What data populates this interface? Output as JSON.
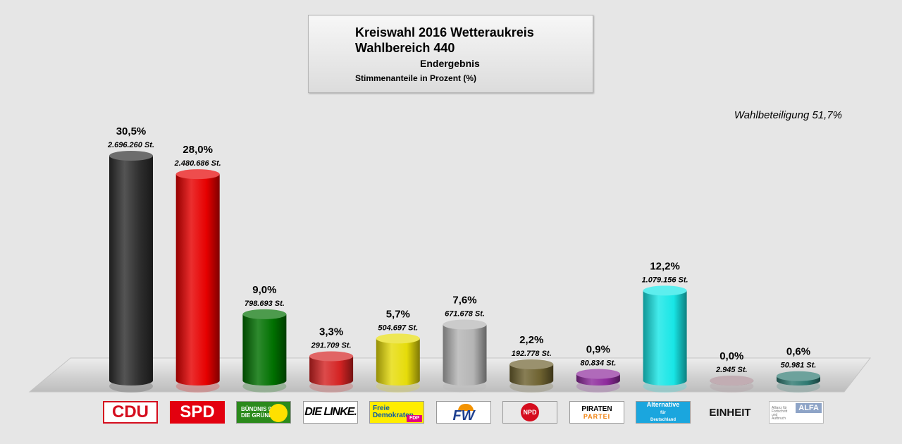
{
  "title": {
    "line1": "Kreiswahl 2016 Wetteraukreis",
    "line2": "Wahlbereich 440",
    "line3": "Endergebnis",
    "line4": "Stimmenanteile in Prozent (%)"
  },
  "turnout_label": "Wahlbeteiligung 51,7%",
  "colors": {
    "background": "#e6e6e6",
    "floor": "#c8c8c8"
  },
  "chart_data": {
    "type": "bar",
    "title": "Kreiswahl 2016 Wetteraukreis",
    "ylabel": "",
    "xlabel": "",
    "ylim": [
      0,
      30.5
    ],
    "grid": false,
    "legend": "none",
    "categories": [
      "CDU",
      "SPD",
      "BÜNDNIS 90 DIE GRÜNEN",
      "DIE LINKE.",
      "Freie Demokraten FDP",
      "FW",
      "NPD",
      "PIRATEN PARTEI",
      "Alternative für Deutschland",
      "EINHEIT",
      "ALFA"
    ],
    "values": [
      30.5,
      28.0,
      9.0,
      3.3,
      5.7,
      7.6,
      2.2,
      0.9,
      12.2,
      0.0,
      0.6
    ],
    "percent_labels": [
      "30,5%",
      "28,0%",
      "9,0%",
      "3,3%",
      "5,7%",
      "7,6%",
      "2,2%",
      "0,9%",
      "12,2%",
      "0,0%",
      "0,6%"
    ],
    "vote_labels": [
      "2.696.260 St.",
      "2.480.686 St.",
      "798.693 St.",
      "291.709 St.",
      "504.697 St.",
      "671.678 St.",
      "192.778 St.",
      "80.834 St.",
      "1.079.156 St.",
      "2.945 St.",
      "50.981 St."
    ],
    "colors": [
      "#2e2e2e",
      "#e60000",
      "#007000",
      "#d42323",
      "#e6dc0a",
      "#b4b4b4",
      "#6e6230",
      "#8e2a9c",
      "#18e6e6",
      "#a88a92",
      "#2e7a72"
    ]
  },
  "logos": {
    "cdu": "CDU",
    "spd": "SPD",
    "gruene_l1": "BÜNDNIS 90",
    "gruene_l2": "DIE GRÜNEN",
    "linke": "DIE LINKE.",
    "fdp_l1": "Freie",
    "fdp_l2": "Demokraten",
    "fdp_tag": "FDP",
    "fw": "FW",
    "npd": "NPD",
    "piraten_l1": "PIRATEN",
    "piraten_l2": "PARTEI",
    "afd_l1": "Alternative",
    "afd_l2": "für",
    "afd_l3": "Deutschland",
    "einheit": "EINHEIT",
    "alfa": "ALFA",
    "alfa_sub": "Allianz für Fortschritt und Aufbruch"
  }
}
